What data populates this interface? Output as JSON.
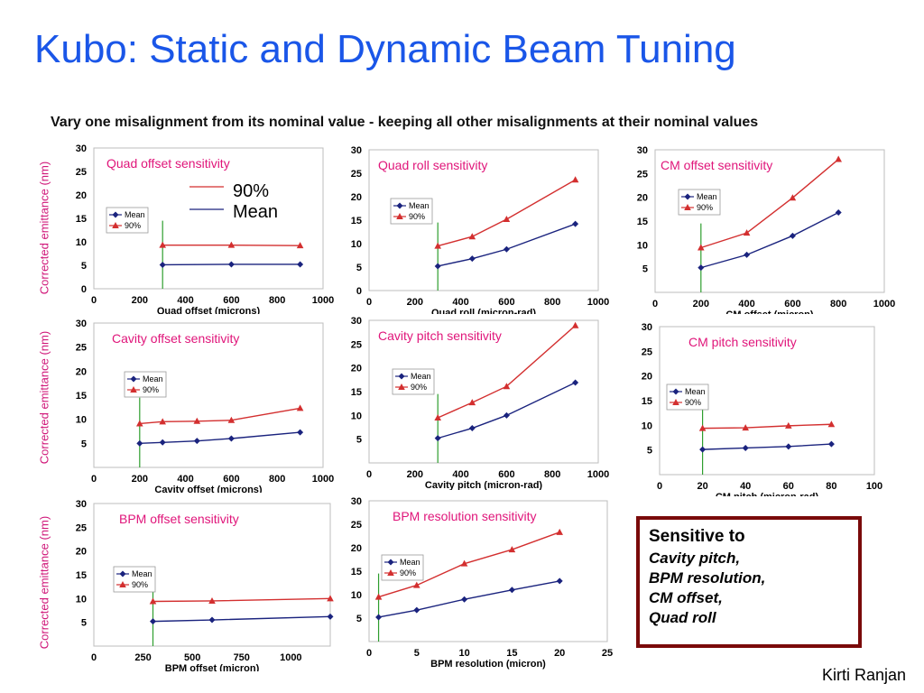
{
  "title": "Kubo: Static and Dynamic Beam Tuning",
  "subtitle": "Vary one misalignment from its nominal value - keeping all other misalignments at their nominal values",
  "ylabel": "Corrected emittance (nm)",
  "colors": {
    "mean": "#1a237e",
    "p90": "#d32f2f",
    "nominal": "#2e9e2e",
    "panel_title": "#e0157a"
  },
  "legend": {
    "mean": "Mean",
    "p90": "90%"
  },
  "big_legend": {
    "p90": "90%",
    "mean": "Mean"
  },
  "summary": {
    "heading": "Sensitive to",
    "items": [
      "Cavity pitch,",
      "BPM resolution,",
      "CM offset,",
      "Quad roll"
    ]
  },
  "author": "Kirti Ranjan",
  "chart_data": [
    {
      "type": "line",
      "title": "Quad offset sensitivity",
      "xlabel": "Quad offset (microns)",
      "xlim": [
        0,
        1000
      ],
      "xticks": [
        0,
        200,
        400,
        600,
        800,
        1000
      ],
      "xtick_labels": [
        "0",
        "200",
        "400",
        "600",
        "800",
        "1000"
      ],
      "ylim": [
        0,
        30
      ],
      "yticks": [
        0,
        5,
        10,
        15,
        20,
        25,
        30
      ],
      "nominal": 300,
      "series": [
        {
          "name": "Mean",
          "x": [
            300,
            600,
            900
          ],
          "y": [
            5.1,
            5.2,
            5.2
          ]
        },
        {
          "name": "90%",
          "x": [
            300,
            600,
            900
          ],
          "y": [
            9.3,
            9.3,
            9.2
          ]
        }
      ]
    },
    {
      "type": "line",
      "title": "Quad roll sensitivity",
      "xlabel": "Quad roll (micron-rad)",
      "xlim": [
        0,
        1000
      ],
      "xticks": [
        0,
        200,
        400,
        600,
        800,
        1000
      ],
      "xtick_labels": [
        "0",
        "200",
        "400",
        "600",
        "800",
        "1000"
      ],
      "ylim": [
        0,
        30
      ],
      "yticks": [
        0,
        5,
        10,
        15,
        20,
        25,
        30
      ],
      "nominal": 300,
      "series": [
        {
          "name": "Mean",
          "x": [
            300,
            450,
            600,
            900
          ],
          "y": [
            5.2,
            6.8,
            8.8,
            14.2
          ]
        },
        {
          "name": "90%",
          "x": [
            300,
            450,
            600,
            900
          ],
          "y": [
            9.5,
            11.5,
            15.2,
            23.6
          ]
        }
      ]
    },
    {
      "type": "line",
      "title": "CM offset sensitivity",
      "xlabel": "CM offset (micron)",
      "xlim": [
        0,
        1000
      ],
      "xticks": [
        0,
        200,
        400,
        600,
        800,
        1000
      ],
      "xtick_labels": [
        "0",
        "200",
        "400",
        "600",
        "800",
        "1000"
      ],
      "ylim": [
        0,
        30
      ],
      "yticks": [
        5,
        10,
        15,
        20,
        25,
        30
      ],
      "nominal": 200,
      "series": [
        {
          "name": "Mean",
          "x": [
            200,
            400,
            600,
            800
          ],
          "y": [
            5.2,
            7.9,
            11.9,
            16.8
          ]
        },
        {
          "name": "90%",
          "x": [
            200,
            400,
            600,
            800
          ],
          "y": [
            9.4,
            12.5,
            19.9,
            28.0
          ]
        }
      ]
    },
    {
      "type": "line",
      "title": "Cavity offset sensitivity",
      "xlabel": "Cavity offset (microns)",
      "xlim": [
        0,
        1000
      ],
      "xticks": [
        0,
        200,
        400,
        600,
        800,
        1000
      ],
      "xtick_labels": [
        "0",
        "200",
        "400",
        "600",
        "800",
        "1000"
      ],
      "ylim": [
        0,
        30
      ],
      "yticks": [
        5,
        10,
        15,
        20,
        25,
        30
      ],
      "nominal": 200,
      "series": [
        {
          "name": "Mean",
          "x": [
            200,
            300,
            450,
            600,
            900
          ],
          "y": [
            5.0,
            5.2,
            5.5,
            6.0,
            7.3
          ]
        },
        {
          "name": "90%",
          "x": [
            200,
            300,
            450,
            600,
            900
          ],
          "y": [
            9.1,
            9.5,
            9.6,
            9.8,
            12.3
          ]
        }
      ]
    },
    {
      "type": "line",
      "title": "Cavity pitch sensitivity",
      "xlabel": "Cavity pitch (micron-rad)",
      "xlim": [
        0,
        1000
      ],
      "xticks": [
        0,
        200,
        400,
        600,
        800,
        1000
      ],
      "xtick_labels": [
        "0",
        "200",
        "400",
        "600",
        "800",
        "1000"
      ],
      "ylim": [
        0,
        30
      ],
      "yticks": [
        5,
        10,
        15,
        20,
        25,
        30
      ],
      "nominal": 300,
      "series": [
        {
          "name": "Mean",
          "x": [
            300,
            450,
            600,
            900
          ],
          "y": [
            5.2,
            7.3,
            10.0,
            16.9
          ]
        },
        {
          "name": "90%",
          "x": [
            300,
            450,
            600,
            900
          ],
          "y": [
            9.5,
            12.7,
            16.1,
            28.9
          ]
        }
      ]
    },
    {
      "type": "line",
      "title": "CM pitch sensitivity",
      "xlabel": "CM pitch (micron-rad)",
      "xlim": [
        0,
        100
      ],
      "xticks": [
        0,
        20,
        40,
        60,
        80,
        100
      ],
      "xtick_labels": [
        "0",
        "20",
        "40",
        "60",
        "80",
        "100"
      ],
      "ylim": [
        0,
        30
      ],
      "yticks": [
        5,
        10,
        15,
        20,
        25,
        30
      ],
      "nominal": 20,
      "series": [
        {
          "name": "Mean",
          "x": [
            20,
            40,
            60,
            80
          ],
          "y": [
            5.1,
            5.4,
            5.7,
            6.2
          ]
        },
        {
          "name": "90%",
          "x": [
            20,
            40,
            60,
            80
          ],
          "y": [
            9.4,
            9.5,
            9.9,
            10.2
          ]
        }
      ]
    },
    {
      "type": "line",
      "title": "BPM offset sensitivity",
      "xlabel": "BPM offset (micron)",
      "xlim": [
        0,
        1200
      ],
      "xticks": [
        0,
        250,
        500,
        750,
        1000
      ],
      "xtick_labels": [
        "0",
        "250",
        "500",
        "750",
        "1000"
      ],
      "ylim": [
        0,
        30
      ],
      "yticks": [
        5,
        10,
        15,
        20,
        25,
        30
      ],
      "nominal": 300,
      "series": [
        {
          "name": "Mean",
          "x": [
            300,
            600,
            1200
          ],
          "y": [
            5.2,
            5.5,
            6.2
          ]
        },
        {
          "name": "90%",
          "x": [
            300,
            600,
            1200
          ],
          "y": [
            9.4,
            9.5,
            10.0
          ]
        }
      ]
    },
    {
      "type": "line",
      "title": "BPM resolution sensitivity",
      "xlabel": "BPM resolution (micron)",
      "xlim": [
        0,
        25
      ],
      "xticks": [
        0,
        5,
        10,
        15,
        20,
        25
      ],
      "xtick_labels": [
        "0",
        "5",
        "10",
        "15",
        "20",
        "25"
      ],
      "ylim": [
        0,
        30
      ],
      "yticks": [
        5,
        10,
        15,
        20,
        25,
        30
      ],
      "nominal": 1,
      "series": [
        {
          "name": "Mean",
          "x": [
            1,
            5,
            10,
            15,
            20
          ],
          "y": [
            5.2,
            6.7,
            9.0,
            11.0,
            12.9
          ]
        },
        {
          "name": "90%",
          "x": [
            1,
            5,
            10,
            15,
            20
          ],
          "y": [
            9.5,
            12.0,
            16.6,
            19.6,
            23.3
          ]
        }
      ]
    }
  ]
}
